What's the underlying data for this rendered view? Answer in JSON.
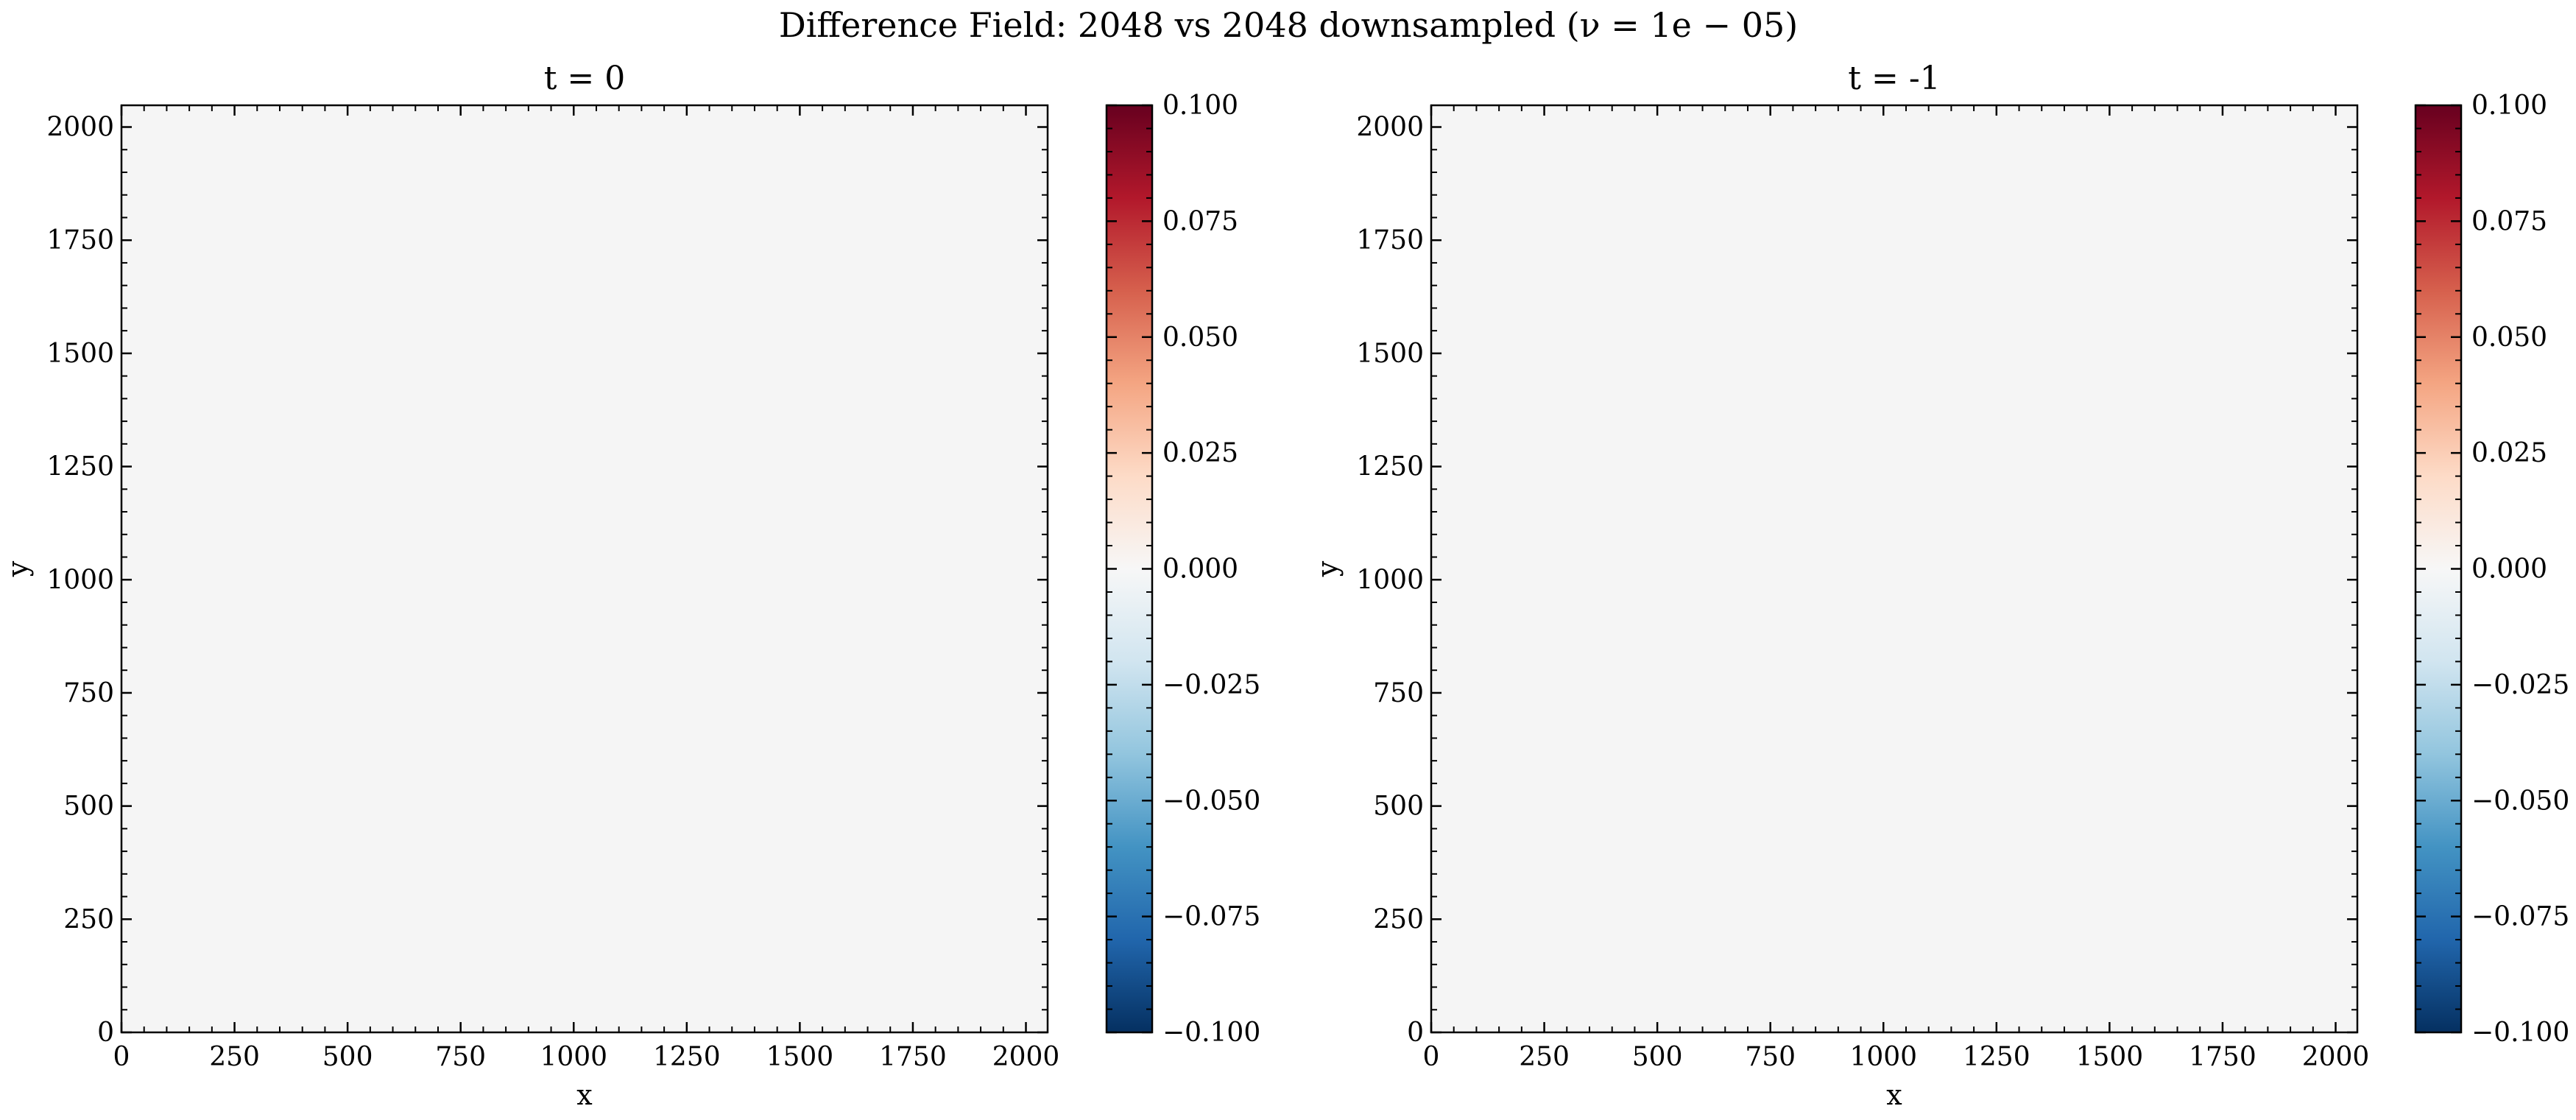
{
  "figure": {
    "suptitle": "Difference Field: 2048 vs 2048 downsampled (ν = 1e − 05)"
  },
  "chart_data": [
    {
      "type": "heatmap",
      "title": "t = 0",
      "xlabel": "x",
      "ylabel": "y",
      "xlim": [
        0,
        2048
      ],
      "ylim": [
        0,
        2048
      ],
      "xticks": [
        0,
        250,
        500,
        750,
        1000,
        1250,
        1500,
        1750,
        2000
      ],
      "yticks": [
        0,
        250,
        500,
        750,
        1000,
        1250,
        1500,
        1750,
        2000
      ],
      "xtick_labels": [
        "0",
        "250",
        "500",
        "750",
        "1000",
        "1250",
        "1500",
        "1750",
        "2000"
      ],
      "ytick_labels": [
        "0",
        "250",
        "500",
        "750",
        "1000",
        "1250",
        "1500",
        "1750",
        "2000"
      ],
      "field_value": 0.0,
      "fill_color": "#f5f5f5",
      "colormap": "RdBu_r",
      "colorbar": {
        "vmin": -0.1,
        "vmax": 0.1,
        "ticks": [
          -0.1,
          -0.075,
          -0.05,
          -0.025,
          0.0,
          0.025,
          0.05,
          0.075,
          0.1
        ],
        "tick_labels": [
          "−0.100",
          "−0.075",
          "−0.050",
          "−0.025",
          "0.000",
          "0.025",
          "0.050",
          "0.075",
          "0.100"
        ]
      }
    },
    {
      "type": "heatmap",
      "title": "t = -1",
      "xlabel": "x",
      "ylabel": "y",
      "xlim": [
        0,
        2048
      ],
      "ylim": [
        0,
        2048
      ],
      "xticks": [
        0,
        250,
        500,
        750,
        1000,
        1250,
        1500,
        1750,
        2000
      ],
      "yticks": [
        0,
        250,
        500,
        750,
        1000,
        1250,
        1500,
        1750,
        2000
      ],
      "xtick_labels": [
        "0",
        "250",
        "500",
        "750",
        "1000",
        "1250",
        "1500",
        "1750",
        "2000"
      ],
      "ytick_labels": [
        "0",
        "250",
        "500",
        "750",
        "1000",
        "1250",
        "1500",
        "1750",
        "2000"
      ],
      "field_value": 0.0,
      "fill_color": "#f5f5f5",
      "colormap": "RdBu_r",
      "colorbar": {
        "vmin": -0.1,
        "vmax": 0.1,
        "ticks": [
          -0.1,
          -0.075,
          -0.05,
          -0.025,
          0.0,
          0.025,
          0.05,
          0.075,
          0.1
        ],
        "tick_labels": [
          "−0.100",
          "−0.075",
          "−0.050",
          "−0.025",
          "0.000",
          "0.025",
          "0.050",
          "0.075",
          "0.100"
        ]
      }
    }
  ],
  "colormap_stops": [
    "#053061",
    "#2166ac",
    "#4393c3",
    "#92c5de",
    "#d1e5f0",
    "#f7f7f7",
    "#fddbc7",
    "#f4a582",
    "#d6604d",
    "#b2182b",
    "#67001f"
  ]
}
